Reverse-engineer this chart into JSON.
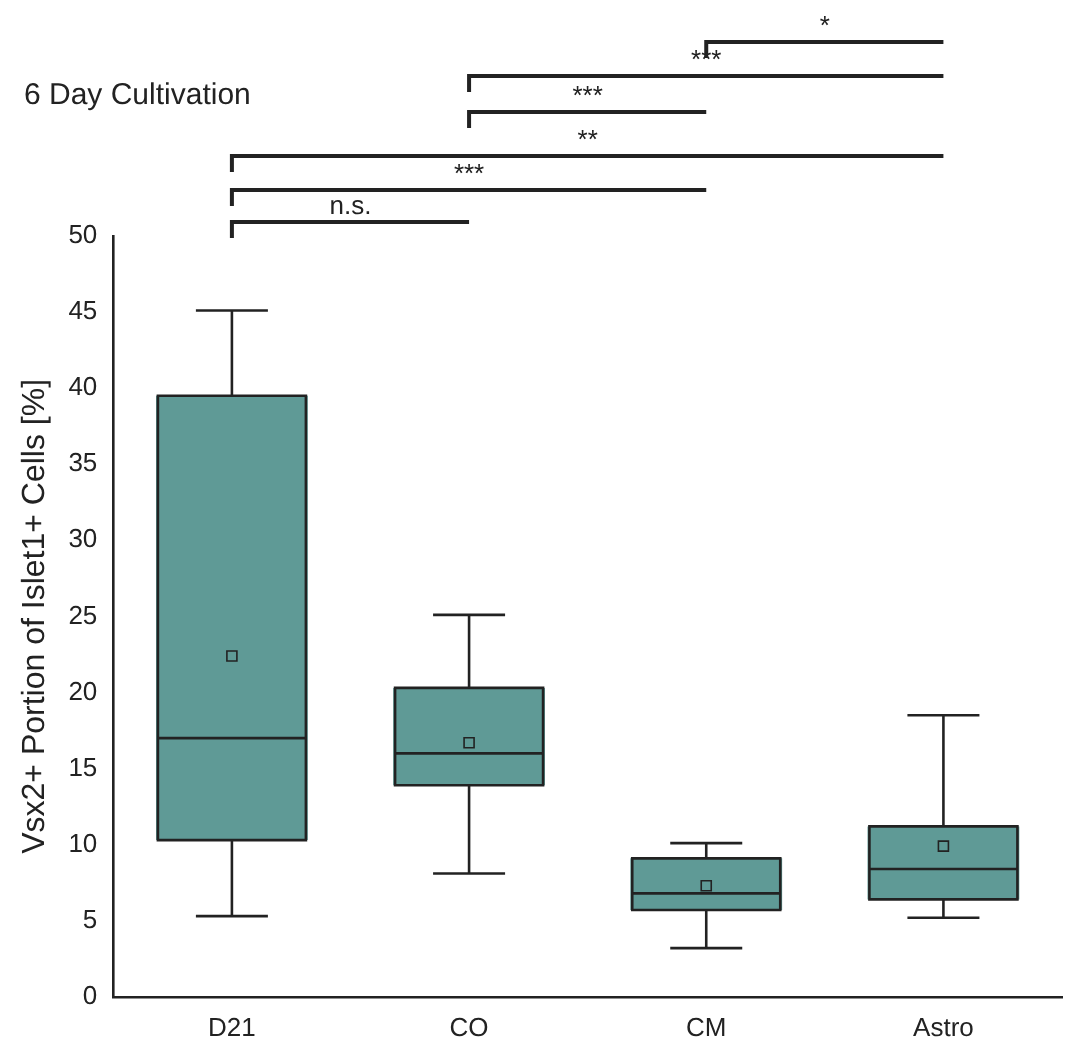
{
  "chart_data": {
    "type": "box",
    "title": "6 Day Cultivation",
    "ylabel": "Vsx2+ Portion of Islet1+ Cells [%]",
    "categories": [
      "D21",
      "CO",
      "CM",
      "Astro"
    ],
    "series": [
      {
        "color": "#5f9a96",
        "boxes": [
          {
            "low": 5.3,
            "q1": 10.3,
            "median": 17,
            "q3": 39.5,
            "high": 45.1,
            "mean": 22.4
          },
          {
            "low": 8.1,
            "q1": 13.9,
            "median": 16,
            "q3": 20.3,
            "high": 25.1,
            "mean": 16.7
          },
          {
            "low": 3.2,
            "q1": 5.7,
            "median": 6.8,
            "q3": 9.1,
            "high": 10.1,
            "mean": 7.3
          },
          {
            "low": 5.2,
            "q1": 6.4,
            "median": 8.4,
            "q3": 11.2,
            "high": 18.5,
            "mean": 9.9
          }
        ]
      }
    ],
    "ylim": [
      0,
      50
    ],
    "yticks": [
      0,
      5,
      10,
      15,
      20,
      25,
      30,
      35,
      40,
      45,
      50
    ],
    "grid": false,
    "legend": false,
    "annotations": [
      "n.s.",
      "***",
      "**",
      "***",
      "***",
      "*"
    ]
  }
}
